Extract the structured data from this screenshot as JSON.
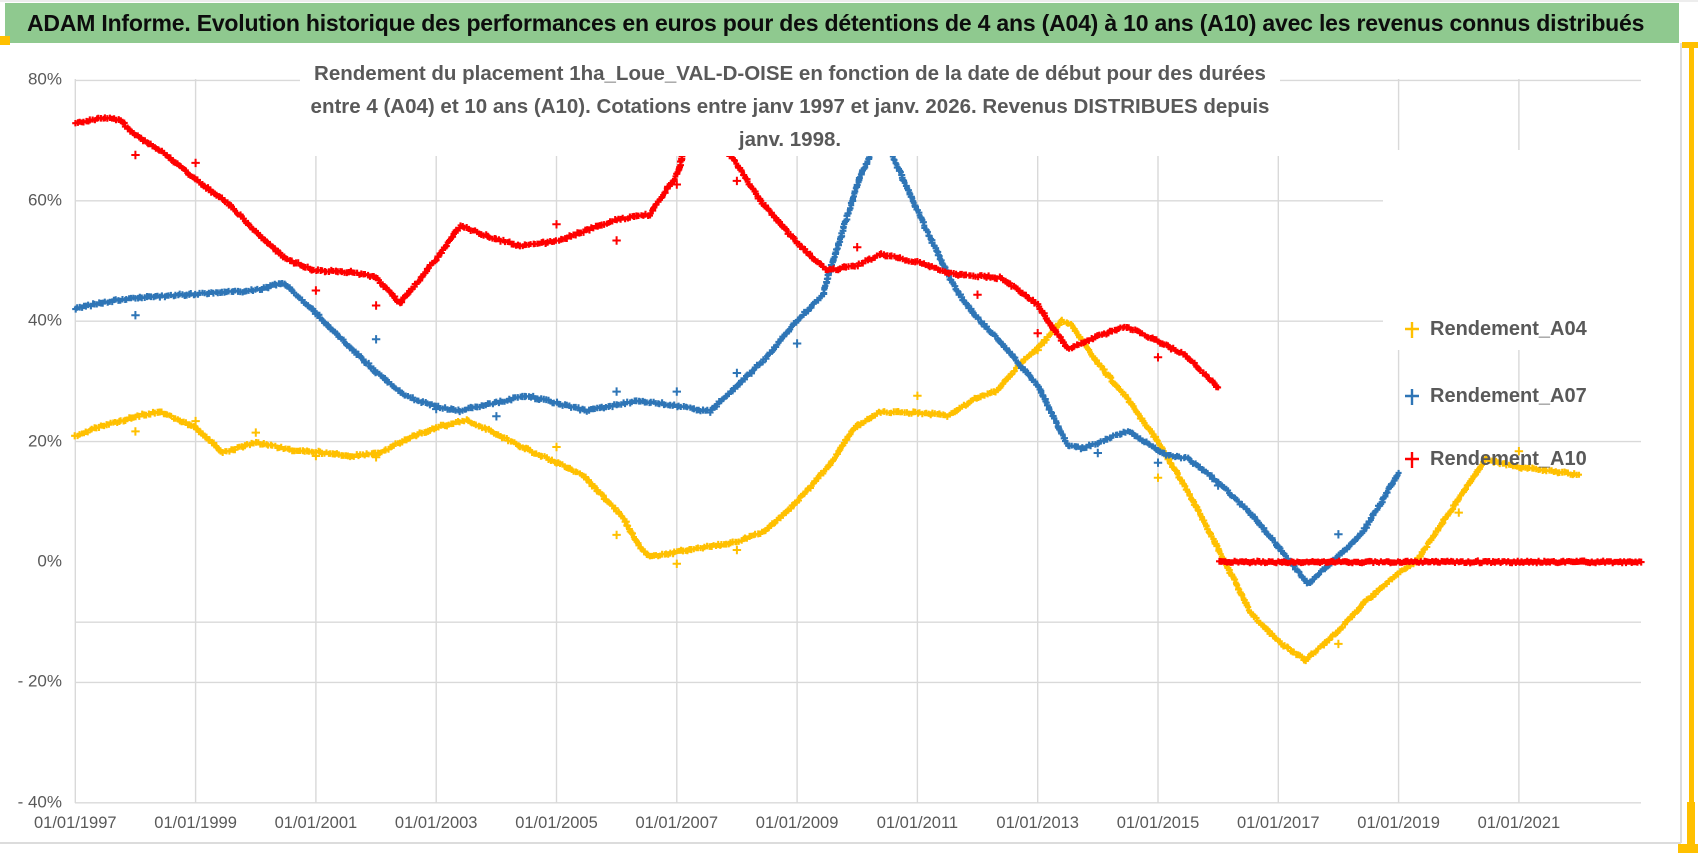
{
  "header": {
    "title": "ADAM Informe. Evolution historique des performances en euros pour des détentions de 4 ans (A04) à 10 ans (A10) avec les revenus connus distribués"
  },
  "frame": {
    "header_green": "#8FC98F",
    "accent_yellow": "#FFC000",
    "grid_color": "#D9D9D9",
    "axis_text_color": "#595959"
  },
  "chart_data": {
    "type": "scatter",
    "title_lines": [
      "Rendement du placement 1ha_Loue_VAL-D-OISE en fonction de la date de début pour des durées",
      "entre 4 (A04) et 10 ans (A10). Cotations entre janv 1997 et janv. 2026. Revenus DISTRIBUES depuis janv. 1998."
    ],
    "legend_position": "right",
    "grid": true,
    "x_axis": {
      "range": [
        1997,
        2023.05
      ],
      "ticks": [
        {
          "t": 1997,
          "label": "01/01/1997"
        },
        {
          "t": 1999,
          "label": "01/01/1999"
        },
        {
          "t": 2001,
          "label": "01/01/2001"
        },
        {
          "t": 2003,
          "label": "01/01/2003"
        },
        {
          "t": 2005,
          "label": "01/01/2005"
        },
        {
          "t": 2007,
          "label": "01/01/2007"
        },
        {
          "t": 2009,
          "label": "01/01/2009"
        },
        {
          "t": 2011,
          "label": "01/01/2011"
        },
        {
          "t": 2013,
          "label": "01/01/2013"
        },
        {
          "t": 2015,
          "label": "01/01/2015"
        },
        {
          "t": 2017,
          "label": "01/01/2017"
        },
        {
          "t": 2019,
          "label": "01/01/2019"
        },
        {
          "t": 2021,
          "label": "01/01/2021"
        }
      ]
    },
    "y_axis": {
      "range": [
        -40,
        80
      ],
      "unit": "%",
      "ticks": [
        {
          "v": 80,
          "label": "80%"
        },
        {
          "v": 60,
          "label": "60%"
        },
        {
          "v": 40,
          "label": "40%"
        },
        {
          "v": 20,
          "label": "20%"
        },
        {
          "v": 0,
          "label": "0%"
        },
        {
          "v": -20,
          "label": "- 20%"
        },
        {
          "v": -40,
          "label": "- 40%"
        }
      ]
    },
    "gridlines_h_values": [
      80,
      60,
      40,
      20,
      -10,
      -20,
      -40
    ],
    "marker": "plus",
    "series": [
      {
        "name": "Rendement_A04",
        "color": "#FFC000",
        "points": [
          [
            1997.0,
            20.8
          ],
          [
            1997.35,
            22.3
          ],
          [
            1998.0,
            24.2
          ],
          [
            1998.4,
            25.0
          ],
          [
            1999.0,
            22.3
          ],
          [
            1999.45,
            18.2
          ],
          [
            2000.0,
            19.8
          ],
          [
            2000.6,
            18.6
          ],
          [
            2001.0,
            18.3
          ],
          [
            2001.6,
            17.6
          ],
          [
            2002.1,
            18.2
          ],
          [
            2002.5,
            20.4
          ],
          [
            2003.0,
            22.4
          ],
          [
            2003.5,
            23.5
          ],
          [
            2004.0,
            21.3
          ],
          [
            2004.5,
            18.8
          ],
          [
            2005.0,
            16.5
          ],
          [
            2005.45,
            14.3
          ],
          [
            2006.1,
            7.5
          ],
          [
            2006.35,
            3.0
          ],
          [
            2006.55,
            0.8
          ],
          [
            2007.0,
            1.7
          ],
          [
            2007.5,
            2.5
          ],
          [
            2008.0,
            3.3
          ],
          [
            2008.45,
            5.0
          ],
          [
            2009.0,
            10.0
          ],
          [
            2009.55,
            16.2
          ],
          [
            2009.95,
            22.3
          ],
          [
            2010.35,
            24.9
          ],
          [
            2011.15,
            24.7
          ],
          [
            2011.5,
            24.2
          ],
          [
            2011.95,
            27.1
          ],
          [
            2012.3,
            28.3
          ],
          [
            2012.75,
            33.3
          ],
          [
            2013.1,
            36.5
          ],
          [
            2013.4,
            40.1
          ],
          [
            2013.55,
            39.5
          ],
          [
            2014.0,
            33.0
          ],
          [
            2014.45,
            27.6
          ],
          [
            2015.0,
            20.1
          ],
          [
            2015.45,
            12.5
          ],
          [
            2016.0,
            2.3
          ],
          [
            2016.55,
            -8.6
          ],
          [
            2017.05,
            -13.6
          ],
          [
            2017.45,
            -16.3
          ],
          [
            2018.0,
            -11.5
          ],
          [
            2018.5,
            -6.1
          ],
          [
            2019.0,
            -1.9
          ],
          [
            2019.3,
            0.2
          ],
          [
            2020.45,
            17.1
          ],
          [
            2021.0,
            15.7
          ],
          [
            2021.5,
            15.1
          ],
          [
            2022.0,
            14.5
          ]
        ],
        "outliers": [
          [
            1998.0,
            21.7
          ],
          [
            1999.0,
            23.4
          ],
          [
            2000.0,
            21.5
          ],
          [
            2001.0,
            17.6
          ],
          [
            2002.0,
            17.4
          ],
          [
            2005.0,
            19.1
          ],
          [
            2006.0,
            4.5
          ],
          [
            2007.0,
            -0.3
          ],
          [
            2008.0,
            2.0
          ],
          [
            2010.0,
            22.6
          ],
          [
            2011.0,
            27.6
          ],
          [
            2013.0,
            35.2
          ],
          [
            2015.0,
            14.0
          ],
          [
            2018.0,
            -13.6
          ],
          [
            2020.0,
            8.2
          ],
          [
            2021.0,
            18.4
          ]
        ]
      },
      {
        "name": "Rendement_A07",
        "color": "#2E75B6",
        "points": [
          [
            1997.0,
            42.1
          ],
          [
            1997.5,
            43.2
          ],
          [
            1998.0,
            43.9
          ],
          [
            1999.0,
            44.5
          ],
          [
            2000.0,
            45.1
          ],
          [
            2000.45,
            46.4
          ],
          [
            2001.0,
            41.4
          ],
          [
            2001.5,
            36.3
          ],
          [
            2002.0,
            31.6
          ],
          [
            2002.5,
            27.5
          ],
          [
            2003.0,
            25.8
          ],
          [
            2003.4,
            25.1
          ],
          [
            2004.5,
            27.6
          ],
          [
            2005.0,
            26.4
          ],
          [
            2005.5,
            25.1
          ],
          [
            2006.0,
            26.1
          ],
          [
            2006.4,
            26.8
          ],
          [
            2007.0,
            25.9
          ],
          [
            2007.55,
            25.0
          ],
          [
            2008.05,
            29.7
          ],
          [
            2008.5,
            34.1
          ],
          [
            2009.0,
            40.1
          ],
          [
            2009.43,
            44.4
          ],
          [
            2009.6,
            50.1
          ],
          [
            2010.05,
            64.0
          ],
          [
            2010.4,
            71.6
          ],
          [
            2011.2,
            54.0
          ],
          [
            2011.65,
            45.1
          ],
          [
            2011.95,
            41.1
          ],
          [
            2012.3,
            37.4
          ],
          [
            2013.0,
            29.3
          ],
          [
            2013.5,
            19.4
          ],
          [
            2013.75,
            18.9
          ],
          [
            2014.5,
            21.8
          ],
          [
            2015.1,
            17.9
          ],
          [
            2015.5,
            17.2
          ],
          [
            2016.0,
            13.3
          ],
          [
            2016.6,
            7.5
          ],
          [
            2017.05,
            1.8
          ],
          [
            2017.5,
            -3.6
          ],
          [
            2018.4,
            4.8
          ],
          [
            2019.0,
            14.8
          ]
        ],
        "outliers": [
          [
            1998.0,
            41.0
          ],
          [
            2002.0,
            37.0
          ],
          [
            2003.0,
            25.4
          ],
          [
            2004.0,
            24.2
          ],
          [
            2006.0,
            28.3
          ],
          [
            2007.0,
            28.3
          ],
          [
            2008.0,
            31.4
          ],
          [
            2009.0,
            36.3
          ],
          [
            2014.0,
            18.1
          ],
          [
            2015.0,
            16.5
          ],
          [
            2016.0,
            12.7
          ],
          [
            2017.0,
            2.5
          ],
          [
            2018.0,
            4.6
          ]
        ]
      },
      {
        "name": "Rendement_A10",
        "color": "#FE0000",
        "points": [
          [
            1997.0,
            73.0
          ],
          [
            1997.5,
            73.8
          ],
          [
            1997.75,
            73.3
          ],
          [
            1998.0,
            70.9
          ],
          [
            1998.5,
            67.8
          ],
          [
            1999.0,
            63.5
          ],
          [
            1999.5,
            59.9
          ],
          [
            2000.0,
            54.9
          ],
          [
            2000.5,
            50.3
          ],
          [
            2001.0,
            48.4
          ],
          [
            2001.55,
            48.2
          ],
          [
            2002.0,
            47.3
          ],
          [
            2002.4,
            42.9
          ],
          [
            2003.0,
            50.3
          ],
          [
            2003.4,
            55.8
          ],
          [
            2004.0,
            53.6
          ],
          [
            2004.4,
            52.5
          ],
          [
            2005.0,
            53.3
          ],
          [
            2006.0,
            56.9
          ],
          [
            2006.55,
            57.7
          ],
          [
            2007.0,
            64.3
          ],
          [
            2007.2,
            70.8
          ],
          [
            2007.45,
            70.9
          ],
          [
            2007.75,
            69.2
          ],
          [
            2007.95,
            66.8
          ],
          [
            2008.4,
            59.9
          ],
          [
            2009.0,
            53.0
          ],
          [
            2009.5,
            48.4
          ],
          [
            2010.0,
            49.3
          ],
          [
            2010.4,
            51.1
          ],
          [
            2011.0,
            49.8
          ],
          [
            2011.6,
            47.8
          ],
          [
            2012.4,
            47.2
          ],
          [
            2013.0,
            42.7
          ],
          [
            2013.5,
            35.4
          ],
          [
            2013.65,
            36.1
          ],
          [
            2014.45,
            39.2
          ],
          [
            2015.0,
            36.7
          ],
          [
            2015.45,
            34.4
          ],
          [
            2016.0,
            29.0
          ]
        ],
        "flat_zero": [
          2016.02,
          2023.05
        ],
        "outliers": [
          [
            1998.0,
            67.6
          ],
          [
            1999.0,
            66.3
          ],
          [
            2001.0,
            45.1
          ],
          [
            2002.0,
            42.6
          ],
          [
            2005.0,
            56.1
          ],
          [
            2006.0,
            53.4
          ],
          [
            2007.0,
            62.7
          ],
          [
            2008.0,
            63.3
          ],
          [
            2010.0,
            52.3
          ],
          [
            2012.0,
            44.4
          ],
          [
            2013.0,
            38.0
          ],
          [
            2015.0,
            34.0
          ]
        ]
      }
    ]
  }
}
